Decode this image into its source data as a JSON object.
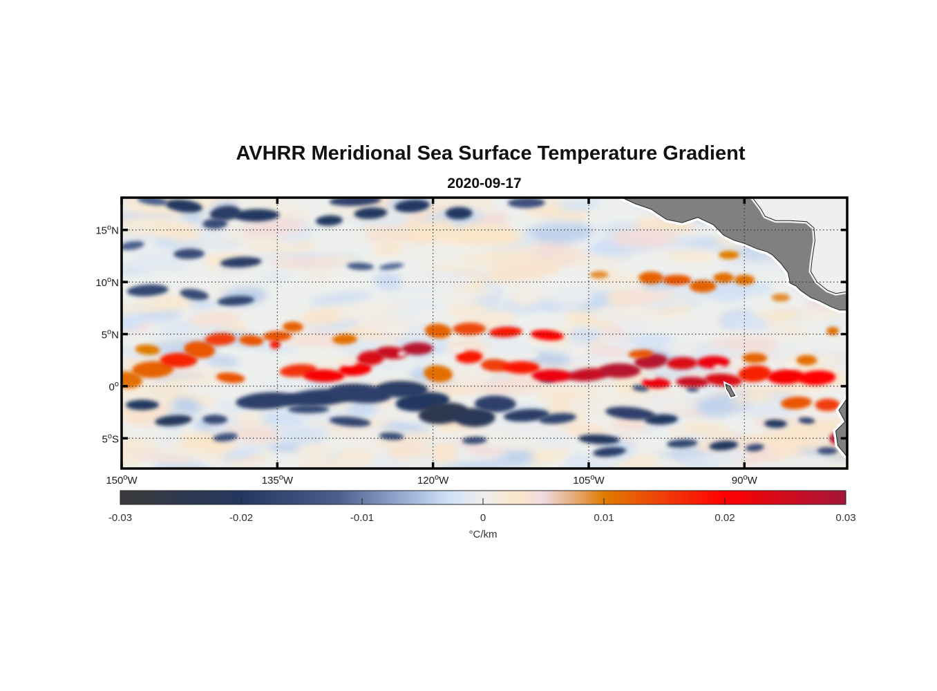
{
  "chart_data": {
    "type": "heatmap",
    "title": "AVHRR Meridional Sea Surface Temperature Gradient",
    "subtitle": "2020-09-17",
    "xlabel": "",
    "ylabel": "",
    "xlim": [
      -150,
      -80.1
    ],
    "ylim": [
      -7.9,
      18.1
    ],
    "grid": true,
    "x_ticks": [
      {
        "value": -150,
        "deg": "150",
        "suffix": "W"
      },
      {
        "value": -135,
        "deg": "135",
        "suffix": "W"
      },
      {
        "value": -120,
        "deg": "120",
        "suffix": "W"
      },
      {
        "value": -105,
        "deg": "105",
        "suffix": "W"
      },
      {
        "value": -90,
        "deg": "90",
        "suffix": "W"
      }
    ],
    "y_ticks": [
      {
        "value": 15,
        "deg": "15",
        "suffix": "N"
      },
      {
        "value": 10,
        "deg": "10",
        "suffix": "N"
      },
      {
        "value": 5,
        "deg": "5",
        "suffix": "N"
      },
      {
        "value": 0,
        "deg": "0",
        "suffix": ""
      },
      {
        "value": -5,
        "deg": "5",
        "suffix": "S"
      }
    ],
    "colorbar": {
      "label": "°C/km",
      "range": [
        -0.03,
        0.03
      ],
      "ticks": [
        -0.03,
        -0.02,
        -0.01,
        0,
        0.01,
        0.02,
        0.03
      ],
      "tick_labels": [
        "-0.03",
        "-0.02",
        "-0.01",
        "0",
        "0.01",
        "0.02",
        "0.03"
      ],
      "orientation": "horizontal",
      "placement": "bottom",
      "stops": [
        {
          "value": -0.03,
          "color": "#3b3b3b"
        },
        {
          "value": -0.02,
          "color": "#243760"
        },
        {
          "value": -0.012,
          "color": "#4a5f8c"
        },
        {
          "value": -0.006,
          "color": "#9fb5d9"
        },
        {
          "value": -0.003,
          "color": "#cfe0f5"
        },
        {
          "value": 0,
          "color": "#eeeeee"
        },
        {
          "value": 0.003,
          "color": "#fbe6c8"
        },
        {
          "value": 0.005,
          "color": "#efdbe0"
        },
        {
          "value": 0.008,
          "color": "#e3a264"
        },
        {
          "value": 0.01,
          "color": "#e07b00"
        },
        {
          "value": 0.015,
          "color": "#f03c0a"
        },
        {
          "value": 0.02,
          "color": "#ff0000"
        },
        {
          "value": 0.03,
          "color": "#a3163a"
        }
      ]
    },
    "land_color": "#808080",
    "features": [
      {
        "name": "equatorial-warm-front",
        "sign": "positive",
        "lon_range": [
          -150,
          -80
        ],
        "lat_center": 1.5,
        "peak": 0.03
      },
      {
        "name": "south-equatorial-cold-band",
        "sign": "negative",
        "lon_range": [
          -145,
          -95
        ],
        "lat_center": -2.5,
        "peak": -0.022
      },
      {
        "name": "northern-cold-eddies",
        "sign": "negative",
        "lon_range": [
          -150,
          -115
        ],
        "lat_center": 14,
        "peak": -0.02
      },
      {
        "name": "central-america-coastal-warm",
        "sign": "positive",
        "lon_range": [
          -100,
          -88
        ],
        "lat_center": 10,
        "peak": 0.014
      }
    ]
  }
}
